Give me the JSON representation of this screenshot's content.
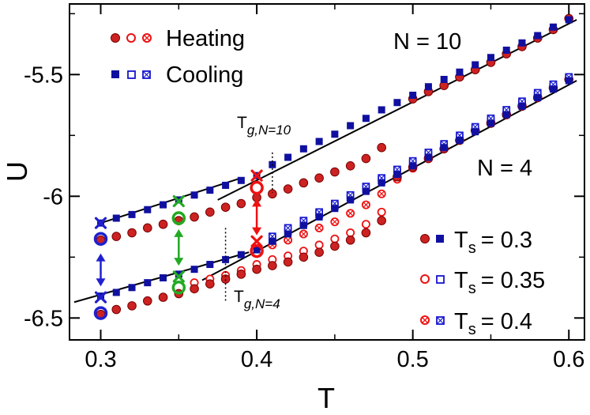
{
  "chart_data": {
    "type": "scatter",
    "xlabel": "T",
    "ylabel": "U",
    "xlim": [
      0.28,
      0.61
    ],
    "ylim": [
      -6.59,
      -5.21
    ],
    "xticks": [
      0.3,
      0.4,
      0.5,
      0.6
    ],
    "xtick_labels": [
      "0.3",
      "0.4",
      "0.5",
      "0.6"
    ],
    "yticks": [
      -6.5,
      -6.0,
      -5.5
    ],
    "ytick_labels": [
      "-6.5",
      "-6",
      "-5.5"
    ],
    "colors": {
      "heating": "#cc2222",
      "cooling": "#1010a0",
      "green": "#22aa22",
      "blue": "#2020d0",
      "red": "#ee1111"
    },
    "legend": {
      "heating_label": "Heating",
      "cooling_label": "Cooling",
      "ts_prefix": "T",
      "ts_subscript": "s",
      "ts_values": [
        "= 0.3",
        "= 0.35",
        "= 0.4"
      ],
      "marker_styles": [
        "filled",
        "open",
        "crossed"
      ]
    },
    "annotations": {
      "n10": "N = 10",
      "n4": "N = 4",
      "tg10_main": "T",
      "tg10_sub": "g,N=10",
      "tg4_main": "T",
      "tg4_sub": "g,N=4"
    },
    "tg_values": {
      "n10": 0.41,
      "n4": 0.38
    },
    "fit_lines": [
      {
        "name": "N10 low-T fit",
        "x": [
          0.3,
          0.39
        ],
        "y": [
          -6.11,
          -5.925
        ]
      },
      {
        "name": "N10 high-T fit",
        "x": [
          0.375,
          0.605
        ],
        "y": [
          -6.015,
          -5.275
        ]
      },
      {
        "name": "N4 low-T fit",
        "x": [
          0.283,
          0.395
        ],
        "y": [
          -6.435,
          -6.23
        ]
      },
      {
        "name": "N4 high-T fit",
        "x": [
          0.365,
          0.605
        ],
        "y": [
          -6.345,
          -5.525
        ]
      }
    ],
    "series": [
      {
        "name": "N10 cooling Ts=0.3",
        "marker": "square-filled",
        "x": [
          0.3,
          0.31,
          0.32,
          0.33,
          0.34,
          0.35,
          0.36,
          0.37,
          0.38,
          0.39,
          0.4,
          0.41,
          0.42,
          0.43,
          0.44,
          0.45,
          0.46,
          0.47,
          0.48,
          0.49,
          0.5,
          0.51,
          0.52,
          0.53,
          0.54,
          0.55,
          0.56,
          0.57,
          0.58,
          0.59,
          0.6
        ],
        "y": [
          -6.11,
          -6.09,
          -6.075,
          -6.055,
          -6.035,
          -6.015,
          -5.995,
          -5.975,
          -5.955,
          -5.935,
          -5.915,
          -5.87,
          -5.84,
          -5.805,
          -5.775,
          -5.745,
          -5.71,
          -5.68,
          -5.645,
          -5.615,
          -5.585,
          -5.55,
          -5.52,
          -5.49,
          -5.46,
          -5.43,
          -5.4,
          -5.37,
          -5.34,
          -5.305,
          -5.275
        ]
      },
      {
        "name": "N10 heating Ts=0.3",
        "marker": "circle-filled",
        "x": [
          0.3,
          0.31,
          0.32,
          0.33,
          0.34,
          0.35,
          0.36,
          0.37,
          0.38,
          0.39,
          0.4,
          0.41,
          0.42,
          0.43,
          0.44,
          0.45,
          0.46,
          0.47,
          0.48,
          0.5,
          0.51,
          0.52,
          0.53,
          0.54,
          0.55,
          0.56,
          0.57,
          0.58,
          0.59,
          0.6
        ],
        "y": [
          -6.18,
          -6.165,
          -6.15,
          -6.13,
          -6.115,
          -6.1,
          -6.085,
          -6.065,
          -6.045,
          -6.03,
          -6.005,
          -5.99,
          -5.97,
          -5.945,
          -5.925,
          -5.9,
          -5.875,
          -5.845,
          -5.8,
          -5.6,
          -5.57,
          -5.545,
          -5.51,
          -5.48,
          -5.45,
          -5.415,
          -5.385,
          -5.35,
          -5.315,
          -5.27
        ]
      },
      {
        "name": "N4 cooling Ts=0.3",
        "marker": "square-filled",
        "x": [
          0.3,
          0.31,
          0.32,
          0.33,
          0.34,
          0.35,
          0.36,
          0.37,
          0.38,
          0.39,
          0.4,
          0.41,
          0.42,
          0.43,
          0.44,
          0.45,
          0.46,
          0.47,
          0.48,
          0.49,
          0.5,
          0.51,
          0.52,
          0.53,
          0.54,
          0.55,
          0.56,
          0.57,
          0.58,
          0.59,
          0.6
        ],
        "y": [
          -6.41,
          -6.395,
          -6.375,
          -6.355,
          -6.335,
          -6.32,
          -6.3,
          -6.28,
          -6.26,
          -6.24,
          -6.22,
          -6.185,
          -6.155,
          -6.12,
          -6.085,
          -6.05,
          -6.015,
          -5.98,
          -5.945,
          -5.91,
          -5.875,
          -5.84,
          -5.8,
          -5.77,
          -5.735,
          -5.7,
          -5.665,
          -5.63,
          -5.595,
          -5.56,
          -5.525
        ]
      },
      {
        "name": "N4 heating Ts=0.3",
        "marker": "circle-filled",
        "x": [
          0.3,
          0.31,
          0.32,
          0.33,
          0.34,
          0.35,
          0.36,
          0.37,
          0.38,
          0.39,
          0.4,
          0.41,
          0.42,
          0.43,
          0.44,
          0.45,
          0.46,
          0.47,
          0.48,
          0.49,
          0.5,
          0.51,
          0.52,
          0.53,
          0.54,
          0.55,
          0.56,
          0.57,
          0.58,
          0.59,
          0.6
        ],
        "y": [
          -6.485,
          -6.465,
          -6.45,
          -6.43,
          -6.415,
          -6.4,
          -6.38,
          -6.36,
          -6.34,
          -6.32,
          -6.3,
          -6.285,
          -6.27,
          -6.25,
          -6.23,
          -6.205,
          -6.18,
          -6.15,
          -6.1,
          -5.92,
          -5.88,
          -5.845,
          -5.805,
          -5.77,
          -5.73,
          -5.7,
          -5.665,
          -5.63,
          -5.595,
          -5.555,
          -5.52
        ]
      },
      {
        "name": "N4 heating Ts=0.35",
        "marker": "circle-open",
        "x": [
          0.36,
          0.37,
          0.38,
          0.39,
          0.4,
          0.41,
          0.42,
          0.43,
          0.44,
          0.45,
          0.46,
          0.47,
          0.48,
          0.49,
          0.5,
          0.51,
          0.52,
          0.53,
          0.54,
          0.55,
          0.56,
          0.57,
          0.58,
          0.59
        ],
        "y": [
          -6.355,
          -6.34,
          -6.325,
          -6.305,
          -6.28,
          -6.26,
          -6.245,
          -6.225,
          -6.2,
          -6.175,
          -6.15,
          -6.115,
          -6.065,
          -5.925,
          -5.88,
          -5.84,
          -5.805,
          -5.77,
          -5.73,
          -5.7,
          -5.665,
          -5.63,
          -5.595,
          -5.555
        ]
      },
      {
        "name": "N4 cooling Ts=0.35",
        "marker": "square-open",
        "x": [
          0.41,
          0.42,
          0.43,
          0.44,
          0.45,
          0.46,
          0.47,
          0.48,
          0.49,
          0.5,
          0.51,
          0.52,
          0.53,
          0.54,
          0.55,
          0.56,
          0.57,
          0.58,
          0.59,
          0.6
        ],
        "y": [
          -6.18,
          -6.145,
          -6.11,
          -6.075,
          -6.04,
          -6.005,
          -5.97,
          -5.935,
          -5.9,
          -5.865,
          -5.83,
          -5.795,
          -5.76,
          -5.725,
          -5.69,
          -5.655,
          -5.62,
          -5.585,
          -5.55,
          -5.515
        ]
      },
      {
        "name": "N4 heating Ts=0.4",
        "marker": "circle-crossed",
        "x": [
          0.41,
          0.42,
          0.43,
          0.44,
          0.45,
          0.46,
          0.47,
          0.48,
          0.49,
          0.5,
          0.51,
          0.52,
          0.53,
          0.54,
          0.55,
          0.56,
          0.57,
          0.58,
          0.59
        ],
        "y": [
          -6.2,
          -6.18,
          -6.155,
          -6.13,
          -6.105,
          -6.07,
          -6.035,
          -5.99,
          -5.93,
          -5.885,
          -5.845,
          -5.805,
          -5.77,
          -5.73,
          -5.695,
          -5.66,
          -5.625,
          -5.59,
          -5.55
        ]
      },
      {
        "name": "N4 cooling Ts=0.4",
        "marker": "square-crossed",
        "x": [
          0.41,
          0.42,
          0.43,
          0.44,
          0.45,
          0.46,
          0.47,
          0.48,
          0.49,
          0.5,
          0.51,
          0.52,
          0.53,
          0.54,
          0.55,
          0.56,
          0.57,
          0.58,
          0.59,
          0.6
        ],
        "y": [
          -6.165,
          -6.13,
          -6.1,
          -6.065,
          -6.03,
          -5.995,
          -5.96,
          -5.925,
          -5.89,
          -5.855,
          -5.82,
          -5.785,
          -5.75,
          -5.715,
          -5.68,
          -5.645,
          -5.61,
          -5.575,
          -5.54,
          -5.51
        ]
      }
    ],
    "highlights": [
      {
        "name": "start-N10-Ts0.3",
        "marker": "x",
        "color": "blue",
        "x": 0.3,
        "y": -6.11
      },
      {
        "name": "start-N10-Ts0.3",
        "marker": "ring",
        "color": "blue",
        "x": 0.3,
        "y": -6.175
      },
      {
        "name": "start-N4-Ts0.3",
        "marker": "x",
        "color": "blue",
        "x": 0.3,
        "y": -6.415
      },
      {
        "name": "start-N4-Ts0.3",
        "marker": "ring",
        "color": "blue",
        "x": 0.3,
        "y": -6.48
      },
      {
        "name": "start-N10-Ts0.35",
        "marker": "x",
        "color": "green",
        "x": 0.35,
        "y": -6.02
      },
      {
        "name": "start-N10-Ts0.35",
        "marker": "ring",
        "color": "green",
        "x": 0.35,
        "y": -6.09
      },
      {
        "name": "start-N4-Ts0.35",
        "marker": "x",
        "color": "green",
        "x": 0.35,
        "y": -6.33
      },
      {
        "name": "start-N4-Ts0.35",
        "marker": "ring",
        "color": "green",
        "x": 0.35,
        "y": -6.375
      },
      {
        "name": "start-N10-Ts0.4",
        "marker": "x",
        "color": "red",
        "x": 0.4,
        "y": -5.915
      },
      {
        "name": "start-N10-Ts0.4",
        "marker": "ring",
        "color": "red",
        "x": 0.4,
        "y": -5.965
      },
      {
        "name": "start-N4-Ts0.4",
        "marker": "x",
        "color": "red",
        "x": 0.4,
        "y": -6.185
      },
      {
        "name": "start-N4-Ts0.4",
        "marker": "ring",
        "color": "red",
        "x": 0.4,
        "y": -6.225
      }
    ],
    "arrows": [
      {
        "name": "ts0.3",
        "color": "blue",
        "x": 0.3,
        "y1": -6.235,
        "y2": -6.37
      },
      {
        "name": "ts0.35",
        "color": "green",
        "x": 0.35,
        "y1": -6.135,
        "y2": -6.285
      },
      {
        "name": "ts0.4",
        "color": "red",
        "x": 0.4,
        "y1": -6.01,
        "y2": -6.16
      }
    ]
  }
}
